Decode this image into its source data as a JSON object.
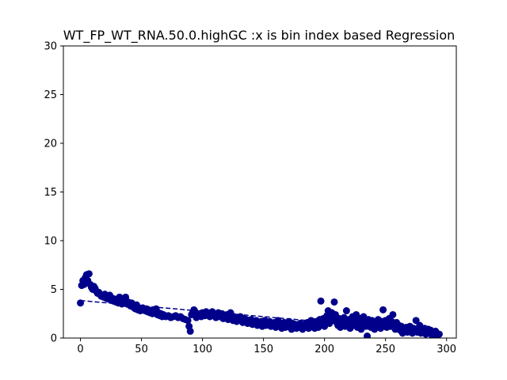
{
  "chart_data": {
    "type": "scatter",
    "title": "WT_FP_WT_RNA.50.0.highGC :x is bin index based Regression",
    "xlabel": "",
    "ylabel": "",
    "xlim": [
      -14,
      308
    ],
    "ylim": [
      0,
      30
    ],
    "x_ticks": [
      0,
      50,
      100,
      150,
      200,
      250,
      300
    ],
    "y_ticks": [
      0,
      5,
      10,
      15,
      20,
      25,
      30
    ],
    "grid": false,
    "legend": "none",
    "colors": {
      "points": "#00008b",
      "regression": "#00008b",
      "axes": "#000000"
    },
    "regression_line": {
      "style": "dashed",
      "x": [
        0,
        295
      ],
      "y": [
        3.85,
        0.6
      ]
    },
    "series": [
      {
        "points": [
          [
            0,
            3.6
          ],
          [
            1,
            5.4
          ],
          [
            2,
            5.9
          ],
          [
            3,
            5.5
          ],
          [
            4,
            6.2
          ],
          [
            5,
            6.5
          ],
          [
            6,
            5.9
          ],
          [
            7,
            6.6
          ],
          [
            8,
            5.5
          ],
          [
            9,
            5.2
          ],
          [
            10,
            5.0
          ],
          [
            11,
            5.3
          ],
          [
            12,
            5.1
          ],
          [
            13,
            4.8
          ],
          [
            14,
            4.6
          ],
          [
            15,
            4.7
          ],
          [
            16,
            4.5
          ],
          [
            17,
            4.3
          ],
          [
            18,
            4.4
          ],
          [
            19,
            4.2
          ],
          [
            20,
            4.5
          ],
          [
            21,
            4.1
          ],
          [
            22,
            4.3
          ],
          [
            23,
            4.0
          ],
          [
            24,
            4.4
          ],
          [
            25,
            3.9
          ],
          [
            26,
            4.1
          ],
          [
            27,
            3.8
          ],
          [
            28,
            4.0
          ],
          [
            29,
            3.7
          ],
          [
            30,
            3.9
          ],
          [
            31,
            3.6
          ],
          [
            32,
            4.2
          ],
          [
            33,
            3.8
          ],
          [
            34,
            3.5
          ],
          [
            35,
            3.9
          ],
          [
            36,
            3.6
          ],
          [
            37,
            4.2
          ],
          [
            38,
            3.5
          ],
          [
            39,
            3.7
          ],
          [
            40,
            3.4
          ],
          [
            41,
            3.3
          ],
          [
            42,
            3.6
          ],
          [
            43,
            3.2
          ],
          [
            44,
            3.1
          ],
          [
            45,
            3.0
          ],
          [
            46,
            3.4
          ],
          [
            47,
            2.9
          ],
          [
            48,
            3.1
          ],
          [
            49,
            2.8
          ],
          [
            50,
            3.0
          ],
          [
            51,
            3.1
          ],
          [
            52,
            2.9
          ],
          [
            53,
            2.8
          ],
          [
            54,
            3.0
          ],
          [
            55,
            2.7
          ],
          [
            56,
            2.9
          ],
          [
            57,
            2.6
          ],
          [
            58,
            2.8
          ],
          [
            59,
            2.5
          ],
          [
            60,
            2.7
          ],
          [
            61,
            2.6
          ],
          [
            62,
            3.0
          ],
          [
            63,
            2.4
          ],
          [
            64,
            2.6
          ],
          [
            65,
            2.3
          ],
          [
            66,
            2.5
          ],
          [
            67,
            2.2
          ],
          [
            68,
            2.4
          ],
          [
            69,
            2.3
          ],
          [
            70,
            2.2
          ],
          [
            72,
            2.3
          ],
          [
            74,
            2.1
          ],
          [
            76,
            2.2
          ],
          [
            78,
            2.3
          ],
          [
            80,
            2.1
          ],
          [
            82,
            2.2
          ],
          [
            84,
            2.0
          ],
          [
            86,
            1.9
          ],
          [
            88,
            1.8
          ],
          [
            89,
            1.2
          ],
          [
            90,
            0.7
          ],
          [
            91,
            2.4
          ],
          [
            92,
            2.6
          ],
          [
            93,
            2.9
          ],
          [
            94,
            2.7
          ],
          [
            95,
            2.1
          ],
          [
            96,
            2.4
          ],
          [
            97,
            2.3
          ],
          [
            98,
            2.5
          ],
          [
            99,
            2.2
          ],
          [
            100,
            2.6
          ],
          [
            101,
            2.4
          ],
          [
            102,
            2.3
          ],
          [
            103,
            2.7
          ],
          [
            104,
            2.5
          ],
          [
            105,
            2.4
          ],
          [
            106,
            2.2
          ],
          [
            107,
            2.6
          ],
          [
            108,
            2.7
          ],
          [
            109,
            2.3
          ],
          [
            110,
            2.5
          ],
          [
            111,
            2.1
          ],
          [
            112,
            2.4
          ],
          [
            113,
            2.6
          ],
          [
            114,
            2.2
          ],
          [
            115,
            2.3
          ],
          [
            116,
            2.5
          ],
          [
            117,
            2.0
          ],
          [
            118,
            2.2
          ],
          [
            119,
            2.1
          ],
          [
            120,
            2.4
          ],
          [
            121,
            1.9
          ],
          [
            122,
            2.3
          ],
          [
            123,
            2.6
          ],
          [
            124,
            2.0
          ],
          [
            125,
            1.8
          ],
          [
            126,
            2.2
          ],
          [
            127,
            2.0
          ],
          [
            128,
            1.7
          ],
          [
            129,
            2.1
          ],
          [
            130,
            1.9
          ],
          [
            131,
            2.2
          ],
          [
            132,
            1.8
          ],
          [
            133,
            1.6
          ],
          [
            134,
            2.0
          ],
          [
            135,
            1.7
          ],
          [
            136,
            1.9
          ],
          [
            137,
            1.5
          ],
          [
            138,
            1.8
          ],
          [
            139,
            1.6
          ],
          [
            140,
            1.9
          ],
          [
            141,
            1.4
          ],
          [
            142,
            1.7
          ],
          [
            143,
            1.5
          ],
          [
            144,
            1.8
          ],
          [
            145,
            1.3
          ],
          [
            146,
            1.6
          ],
          [
            147,
            1.4
          ],
          [
            148,
            1.7
          ],
          [
            149,
            1.2
          ],
          [
            150,
            1.5
          ],
          [
            151,
            1.8
          ],
          [
            152,
            1.3
          ],
          [
            153,
            1.6
          ],
          [
            154,
            1.4
          ],
          [
            155,
            1.7
          ],
          [
            156,
            1.2
          ],
          [
            157,
            1.5
          ],
          [
            158,
            1.3
          ],
          [
            159,
            1.6
          ],
          [
            160,
            1.1
          ],
          [
            161,
            1.4
          ],
          [
            162,
            1.8
          ],
          [
            163,
            1.2
          ],
          [
            164,
            1.5
          ],
          [
            165,
            1.0
          ],
          [
            166,
            1.3
          ],
          [
            167,
            1.6
          ],
          [
            168,
            1.1
          ],
          [
            169,
            1.4
          ],
          [
            170,
            1.2
          ],
          [
            171,
            1.7
          ],
          [
            172,
            1.3
          ],
          [
            173,
            0.9
          ],
          [
            174,
            1.5
          ],
          [
            175,
            1.2
          ],
          [
            176,
            1.4
          ],
          [
            177,
            1.0
          ],
          [
            178,
            1.3
          ],
          [
            179,
            1.1
          ],
          [
            180,
            1.5
          ],
          [
            181,
            1.2
          ],
          [
            182,
            0.9
          ],
          [
            183,
            1.4
          ],
          [
            184,
            1.1
          ],
          [
            185,
            1.3
          ],
          [
            186,
            1.6
          ],
          [
            187,
            1.0
          ],
          [
            188,
            1.4
          ],
          [
            189,
            1.8
          ],
          [
            190,
            1.2
          ],
          [
            191,
            1.5
          ],
          [
            192,
            1.0
          ],
          [
            193,
            1.7
          ],
          [
            194,
            1.3
          ],
          [
            195,
            1.1
          ],
          [
            196,
            1.9
          ],
          [
            197,
            3.8
          ],
          [
            198,
            1.4
          ],
          [
            199,
            2.0
          ],
          [
            200,
            1.2
          ],
          [
            201,
            1.7
          ],
          [
            202,
            2.3
          ],
          [
            203,
            2.8
          ],
          [
            204,
            1.5
          ],
          [
            205,
            2.2
          ],
          [
            206,
            2.6
          ],
          [
            207,
            1.8
          ],
          [
            208,
            3.7
          ],
          [
            209,
            2.4
          ],
          [
            210,
            1.6
          ],
          [
            211,
            1.3
          ],
          [
            212,
            2.0
          ],
          [
            213,
            1.1
          ],
          [
            214,
            1.8
          ],
          [
            215,
            1.4
          ],
          [
            216,
            2.1
          ],
          [
            217,
            1.2
          ],
          [
            218,
            2.8
          ],
          [
            219,
            1.6
          ],
          [
            220,
            1.9
          ],
          [
            221,
            1.0
          ],
          [
            222,
            1.5
          ],
          [
            223,
            2.2
          ],
          [
            224,
            1.3
          ],
          [
            225,
            1.8
          ],
          [
            226,
            2.4
          ],
          [
            227,
            1.1
          ],
          [
            228,
            1.6
          ],
          [
            229,
            2.0
          ],
          [
            230,
            0.9
          ],
          [
            231,
            1.4
          ],
          [
            232,
            2.2
          ],
          [
            233,
            1.7
          ],
          [
            234,
            1.2
          ],
          [
            235,
            0.2
          ],
          [
            236,
            1.9
          ],
          [
            237,
            1.5
          ],
          [
            238,
            1.1
          ],
          [
            239,
            1.8
          ],
          [
            240,
            1.3
          ],
          [
            241,
            0.9
          ],
          [
            242,
            1.6
          ],
          [
            243,
            1.2
          ],
          [
            244,
            1.9
          ],
          [
            245,
            1.4
          ],
          [
            246,
            1.0
          ],
          [
            247,
            1.7
          ],
          [
            248,
            2.9
          ],
          [
            249,
            1.3
          ],
          [
            250,
            1.8
          ],
          [
            251,
            1.1
          ],
          [
            252,
            1.5
          ],
          [
            253,
            2.0
          ],
          [
            254,
            1.2
          ],
          [
            255,
            1.7
          ],
          [
            256,
            2.4
          ],
          [
            257,
            1.4
          ],
          [
            258,
            0.9
          ],
          [
            259,
            1.6
          ],
          [
            260,
            1.1
          ],
          [
            261,
            1.3
          ],
          [
            262,
            0.8
          ],
          [
            263,
            1.2
          ],
          [
            264,
            0.5
          ],
          [
            265,
            1.0
          ],
          [
            266,
            0.7
          ],
          [
            267,
            1.1
          ],
          [
            268,
            0.6
          ],
          [
            269,
            0.9
          ],
          [
            270,
            1.2
          ],
          [
            271,
            0.8
          ],
          [
            272,
            0.5
          ],
          [
            273,
            1.0
          ],
          [
            274,
            0.7
          ],
          [
            275,
            1.8
          ],
          [
            276,
            0.6
          ],
          [
            277,
            0.9
          ],
          [
            278,
            1.3
          ],
          [
            279,
            0.5
          ],
          [
            280,
            0.8
          ],
          [
            281,
            0.6
          ],
          [
            282,
            1.0
          ],
          [
            283,
            0.4
          ],
          [
            284,
            0.7
          ],
          [
            285,
            0.9
          ],
          [
            286,
            0.5
          ],
          [
            287,
            0.8
          ],
          [
            288,
            0.3
          ],
          [
            289,
            0.6
          ],
          [
            290,
            0.4
          ],
          [
            291,
            0.7
          ],
          [
            292,
            0.5
          ],
          [
            293,
            0.3
          ],
          [
            294,
            0.4
          ]
        ]
      }
    ]
  }
}
